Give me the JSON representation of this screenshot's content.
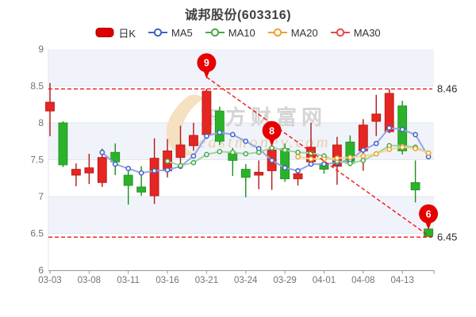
{
  "title": "诚邦股份(603316)",
  "legend": [
    {
      "label": "日K",
      "kind": "candle",
      "color": "#dc0000",
      "line_color": "#a50000"
    },
    {
      "label": "MA5",
      "kind": "line",
      "color": "#3e62c4",
      "line_color": "#93a5e0"
    },
    {
      "label": "MA10",
      "kind": "line",
      "color": "#4aa84a",
      "line_color": "#9fd49a"
    },
    {
      "label": "MA20",
      "kind": "line",
      "color": "#eba32b",
      "line_color": "#f4d890"
    },
    {
      "label": "MA30",
      "kind": "line",
      "color": "#e04b4b",
      "line_color": "#eda0a0"
    }
  ],
  "watermark": {
    "cn": "东方财富网",
    "en": "eastmoney.com"
  },
  "chart_data": {
    "type": "candlestick",
    "title": "诚邦股份(603316)",
    "ylim": [
      6,
      9
    ],
    "y_ticks": [
      "9",
      "8.5",
      "8",
      "7.5",
      "7",
      "6.5",
      "6"
    ],
    "x_tick_labels": [
      "03-03",
      "03-08",
      "03-11",
      "03-16",
      "03-21",
      "03-24",
      "03-29",
      "04-01",
      "04-08",
      "04-13"
    ],
    "x_tick_indices": [
      0,
      3,
      6,
      9,
      12,
      15,
      18,
      21,
      24,
      27
    ],
    "candles": [
      {
        "date": "03-03",
        "o": 8.16,
        "h": 8.54,
        "l": 7.82,
        "c": 8.28
      },
      {
        "date": "03-04",
        "o": 8.0,
        "h": 8.02,
        "l": 7.4,
        "c": 7.43
      },
      {
        "date": "03-07",
        "o": 7.29,
        "h": 7.45,
        "l": 7.14,
        "c": 7.37
      },
      {
        "date": "03-08",
        "o": 7.32,
        "h": 7.58,
        "l": 7.17,
        "c": 7.39
      },
      {
        "date": "03-09",
        "o": 7.19,
        "h": 7.65,
        "l": 7.13,
        "c": 7.53
      },
      {
        "date": "03-10",
        "o": 7.6,
        "h": 7.72,
        "l": 7.29,
        "c": 7.47
      },
      {
        "date": "03-11",
        "o": 7.29,
        "h": 7.37,
        "l": 6.89,
        "c": 7.15
      },
      {
        "date": "03-14",
        "o": 7.13,
        "h": 7.41,
        "l": 7.01,
        "c": 7.06
      },
      {
        "date": "03-15",
        "o": 7.01,
        "h": 7.79,
        "l": 6.9,
        "c": 7.52
      },
      {
        "date": "03-16",
        "o": 7.35,
        "h": 7.78,
        "l": 7.26,
        "c": 7.62
      },
      {
        "date": "03-17",
        "o": 7.53,
        "h": 7.96,
        "l": 7.42,
        "c": 7.7
      },
      {
        "date": "03-18",
        "o": 7.69,
        "h": 8.0,
        "l": 7.62,
        "c": 7.83
      },
      {
        "date": "03-21",
        "o": 7.84,
        "h": 8.46,
        "l": 7.78,
        "c": 8.43
      },
      {
        "date": "03-22",
        "o": 8.16,
        "h": 8.22,
        "l": 7.7,
        "c": 7.75
      },
      {
        "date": "03-23",
        "o": 7.6,
        "h": 7.66,
        "l": 7.28,
        "c": 7.49
      },
      {
        "date": "03-24",
        "o": 7.37,
        "h": 7.44,
        "l": 6.99,
        "c": 7.26
      },
      {
        "date": "03-25",
        "o": 7.29,
        "h": 7.49,
        "l": 7.1,
        "c": 7.33
      },
      {
        "date": "03-28",
        "o": 7.35,
        "h": 7.66,
        "l": 7.09,
        "c": 7.63
      },
      {
        "date": "03-29",
        "o": 7.65,
        "h": 7.72,
        "l": 7.2,
        "c": 7.24
      },
      {
        "date": "03-30",
        "o": 7.24,
        "h": 7.38,
        "l": 7.15,
        "c": 7.31
      },
      {
        "date": "03-31",
        "o": 7.47,
        "h": 8.0,
        "l": 7.42,
        "c": 7.67
      },
      {
        "date": "04-01",
        "o": 7.45,
        "h": 7.5,
        "l": 7.31,
        "c": 7.37
      },
      {
        "date": "04-06",
        "o": 7.41,
        "h": 7.81,
        "l": 7.16,
        "c": 7.7
      },
      {
        "date": "04-07",
        "o": 7.74,
        "h": 7.83,
        "l": 7.41,
        "c": 7.45
      },
      {
        "date": "04-08",
        "o": 7.62,
        "h": 8.05,
        "l": 7.35,
        "c": 7.97
      },
      {
        "date": "04-11",
        "o": 8.02,
        "h": 8.38,
        "l": 7.82,
        "c": 8.12
      },
      {
        "date": "04-12",
        "o": 7.88,
        "h": 8.46,
        "l": 7.86,
        "c": 8.4
      },
      {
        "date": "04-13",
        "o": 8.23,
        "h": 8.3,
        "l": 7.57,
        "c": 7.62
      },
      {
        "date": "04-14",
        "o": 7.19,
        "h": 7.49,
        "l": 6.92,
        "c": 7.09
      },
      {
        "date": "04-15",
        "o": 6.56,
        "h": 6.63,
        "l": 6.45,
        "c": 6.46
      }
    ],
    "series": [
      {
        "name": "MA5",
        "start": 4,
        "color": "#3e62c4",
        "line_color": "#93a5e0",
        "values": [
          7.6,
          7.44,
          7.38,
          7.32,
          7.35,
          7.36,
          7.41,
          7.55,
          7.82,
          7.87,
          7.84,
          7.75,
          7.65,
          7.49,
          7.39,
          7.35,
          7.44,
          7.44,
          7.46,
          7.5,
          7.63,
          7.72,
          7.93,
          7.91,
          7.84,
          7.54
        ]
      },
      {
        "name": "MA10",
        "start": 9,
        "color": "#4aa84a",
        "line_color": "#9fd49a",
        "values": [
          7.48,
          7.42,
          7.46,
          7.57,
          7.61,
          7.6,
          7.58,
          7.6,
          7.66,
          7.63,
          7.6,
          7.59,
          7.55,
          7.48,
          7.45,
          7.49,
          7.58,
          7.69,
          7.69,
          7.67,
          7.59
        ]
      },
      {
        "name": "MA20",
        "start": 19,
        "color": "#eba32b",
        "line_color": "#f4d890",
        "values": [
          7.54,
          7.51,
          7.51,
          7.52,
          7.53,
          7.55,
          7.58,
          7.64,
          7.67,
          7.65,
          7.59
        ]
      },
      {
        "name": "MA30",
        "start": 29,
        "color": "#e04b4b",
        "line_color": "#eda0a0",
        "values": []
      }
    ],
    "ref_lines": [
      {
        "value": 8.46,
        "label": "8.46"
      },
      {
        "value": 6.45,
        "label": "6.45"
      }
    ],
    "balloons": [
      {
        "label": "9",
        "index": 12,
        "value": 8.6
      },
      {
        "label": "8",
        "index": 17,
        "value": 7.68
      },
      {
        "label": "6",
        "index": 29,
        "value": 6.55
      }
    ],
    "trend_line": {
      "from_index": 12,
      "from_value": 8.62,
      "to_index": 29,
      "to_value": 6.47
    },
    "colors": {
      "up": "#e62622",
      "up_dark": "#b01713",
      "down": "#2bb22b",
      "down_dark": "#189018",
      "ref": "#f01414",
      "balloon": "#e60000",
      "band": "#f1f3fa",
      "grid": "#e2e6f0",
      "axis": "#8f959e",
      "tick_text": "#6e737a",
      "ref_text": "#2a2a2a",
      "watermark_cn": "#d4d4d4",
      "watermark_en": "#e5d2ad",
      "watermark_logo": "#f5e0c0"
    }
  }
}
